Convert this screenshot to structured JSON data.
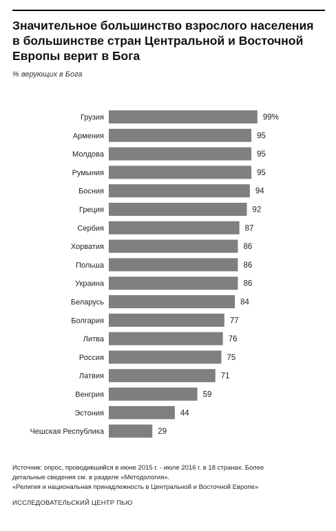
{
  "title": "Значительное большинство взрослого населения в большинстве стран Центральной и Восточной Европы верит в Бога",
  "subtitle": "% верующих в Бога",
  "footer": {
    "source_line1": "Источник: опрос, проводившийся в июне 2015 г. - июле 2016 г. в 18 странах. Более",
    "source_line2": "детальные сведения см. в разделе «Методология».",
    "source_line3": "«Религия и национальная  принадлежность в Центральной и Восточной Европе»",
    "organization": "ИССЛЕДОВАТЕЛЬСКИЙ ЦЕНТР ПЬЮ"
  },
  "chart_data": {
    "type": "bar",
    "orientation": "horizontal",
    "categories": [
      "Грузия",
      "Армения",
      "Молдова",
      "Румыния",
      "Босния",
      "Греция",
      "Сербия",
      "Хорватия",
      "Польша",
      "Украина",
      "Беларусь",
      "Болгария",
      "Литва",
      "Россия",
      "Латвия",
      "Венгрия",
      "Эстония",
      "Чешская Республика"
    ],
    "values": [
      99,
      95,
      95,
      95,
      94,
      92,
      87,
      86,
      86,
      86,
      84,
      77,
      76,
      75,
      71,
      59,
      44,
      29
    ],
    "labels": [
      "99%",
      "95",
      "95",
      "95",
      "94",
      "92",
      "87",
      "86",
      "86",
      "86",
      "84",
      "77",
      "76",
      "75",
      "71",
      "59",
      "44",
      "29"
    ],
    "xlim": [
      0,
      100
    ],
    "bar_color": "#7f7f7f",
    "grid": false,
    "legend": "none"
  }
}
